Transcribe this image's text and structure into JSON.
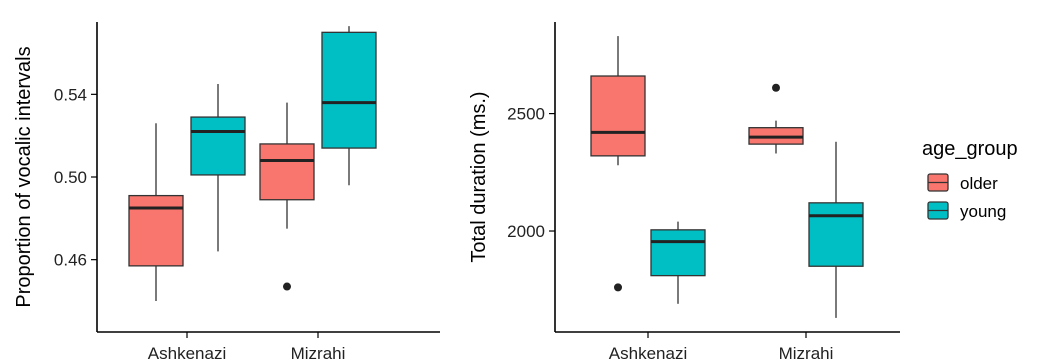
{
  "chart_data": [
    {
      "type": "boxplot",
      "ylabel": "Proportion of vocalic intervals",
      "xlabel": "",
      "categories": [
        "Ashkenazi",
        "Mizrahi"
      ],
      "ylim": [
        0.425,
        0.575
      ],
      "yticks": [
        0.46,
        0.5,
        0.54
      ],
      "ytick_labels": [
        "0.46",
        "0.50",
        "0.54"
      ],
      "series": [
        {
          "name": "older",
          "color": "#F8766D",
          "boxes": [
            {
              "category": "Ashkenazi",
              "min": 0.44,
              "q1": 0.457,
              "median": 0.485,
              "q3": 0.491,
              "max": 0.526,
              "outliers": []
            },
            {
              "category": "Mizrahi",
              "min": 0.475,
              "q1": 0.489,
              "median": 0.508,
              "q3": 0.516,
              "max": 0.536,
              "outliers": [
                0.447
              ]
            }
          ]
        },
        {
          "name": "young",
          "color": "#00BFC4",
          "boxes": [
            {
              "category": "Ashkenazi",
              "min": 0.464,
              "q1": 0.501,
              "median": 0.522,
              "q3": 0.529,
              "max": 0.545,
              "outliers": []
            },
            {
              "category": "Mizrahi",
              "min": 0.496,
              "q1": 0.514,
              "median": 0.536,
              "q3": 0.57,
              "max": 0.573,
              "outliers": []
            }
          ]
        }
      ],
      "grid": false
    },
    {
      "type": "boxplot",
      "ylabel": "Total duration (ms.)",
      "xlabel": "",
      "categories": [
        "Ashkenazi",
        "Mizrahi"
      ],
      "ylim": [
        1570,
        2890
      ],
      "yticks": [
        2000,
        2500
      ],
      "ytick_labels": [
        "2000",
        "2500"
      ],
      "series": [
        {
          "name": "older",
          "color": "#F8766D",
          "boxes": [
            {
              "category": "Ashkenazi",
              "min": 2280,
              "q1": 2320,
              "median": 2420,
              "q3": 2660,
              "max": 2830,
              "outliers": [
                1760
              ]
            },
            {
              "category": "Mizrahi",
              "min": 2330,
              "q1": 2370,
              "median": 2400,
              "q3": 2440,
              "max": 2470,
              "outliers": [
                2610
              ]
            }
          ]
        },
        {
          "name": "young",
          "color": "#00BFC4",
          "boxes": [
            {
              "category": "Ashkenazi",
              "min": 1690,
              "q1": 1810,
              "median": 1955,
              "q3": 2005,
              "max": 2040,
              "outliers": []
            },
            {
              "category": "Mizrahi",
              "min": 1630,
              "q1": 1850,
              "median": 2065,
              "q3": 2120,
              "max": 2380,
              "outliers": []
            }
          ]
        }
      ],
      "grid": false
    }
  ],
  "legend": {
    "title": "age_group",
    "items": [
      {
        "label": "older",
        "color": "#F8766D"
      },
      {
        "label": "young",
        "color": "#00BFC4"
      }
    ]
  }
}
